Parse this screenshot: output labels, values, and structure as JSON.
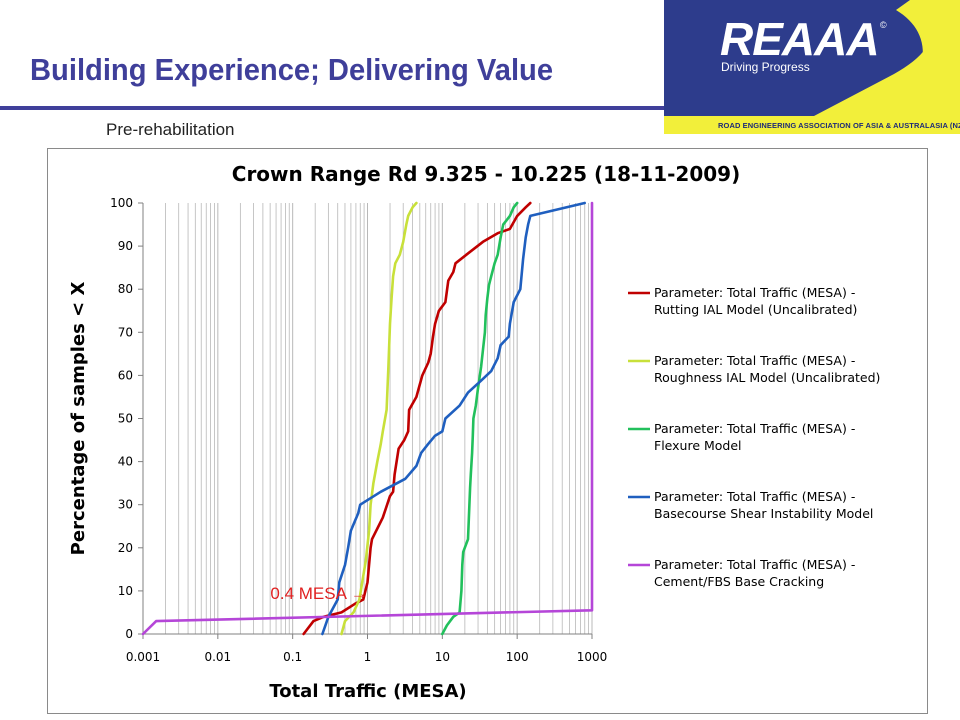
{
  "header": {
    "title": "Building Experience; Delivering Value",
    "subtitle": "Pre-rehabilitation"
  },
  "logo": {
    "wordmark": "REAAA",
    "registered": "©",
    "tagline": "Driving Progress",
    "association": "ROAD ENGINEERING ASSOCIATION OF ASIA & AUSTRALASIA (NZ)",
    "colors": {
      "navy": "#2d3c8c",
      "yellow": "#f2ef3a"
    }
  },
  "chart_data": {
    "type": "line",
    "title": "Crown Range Rd 9.325 - 10.225 (18-11-2009)",
    "xlabel": "Total Traffic (MESA)",
    "ylabel": "Percentage of samples < X",
    "x_scale": "log",
    "xlim": [
      0.001,
      1000
    ],
    "ylim": [
      0,
      100
    ],
    "x_ticks": [
      "0.001",
      "0.01",
      "0.1",
      "1",
      "10",
      "100",
      "1000"
    ],
    "y_ticks": [
      "0",
      "10",
      "20",
      "30",
      "40",
      "50",
      "60",
      "70",
      "80",
      "90",
      "100"
    ],
    "grid": {
      "x_major": true,
      "x_minor": true,
      "y": false
    },
    "legend": "right",
    "annotation": {
      "text": "0.4 MESA ",
      "arrow": "→",
      "color": "#e02020",
      "x": 0.4,
      "y": 9.5
    },
    "series": [
      {
        "name": "Parameter: Total Traffic (MESA) - Rutting IAL Model (Uncalibrated)",
        "color": "#c00000",
        "points": [
          [
            0.14,
            0
          ],
          [
            0.19,
            3
          ],
          [
            0.26,
            4
          ],
          [
            0.45,
            5
          ],
          [
            0.68,
            7
          ],
          [
            0.88,
            8
          ],
          [
            1.0,
            12
          ],
          [
            1.1,
            20
          ],
          [
            1.15,
            22
          ],
          [
            1.6,
            27
          ],
          [
            2.0,
            32
          ],
          [
            2.2,
            33
          ],
          [
            2.3,
            37
          ],
          [
            2.6,
            43
          ],
          [
            3.1,
            45
          ],
          [
            3.5,
            47
          ],
          [
            3.6,
            52
          ],
          [
            4.5,
            55
          ],
          [
            5.4,
            60
          ],
          [
            6.5,
            63
          ],
          [
            7.0,
            65
          ],
          [
            7.5,
            69
          ],
          [
            8.0,
            72
          ],
          [
            9.0,
            75
          ],
          [
            11,
            77
          ],
          [
            12,
            82
          ],
          [
            14,
            84
          ],
          [
            15,
            86
          ],
          [
            21,
            88
          ],
          [
            35,
            91
          ],
          [
            55,
            93
          ],
          [
            80,
            94
          ],
          [
            100,
            97
          ],
          [
            130,
            99
          ],
          [
            150,
            100
          ]
        ]
      },
      {
        "name": "Parameter: Total Traffic (MESA) - Roughness IAL Model (Uncalibrated)",
        "color": "#c8e03a",
        "points": [
          [
            0.45,
            0
          ],
          [
            0.5,
            3
          ],
          [
            0.65,
            5
          ],
          [
            0.78,
            8
          ],
          [
            0.85,
            12
          ],
          [
            0.95,
            17
          ],
          [
            1.05,
            24
          ],
          [
            1.1,
            30
          ],
          [
            1.2,
            35
          ],
          [
            1.35,
            40
          ],
          [
            1.5,
            44
          ],
          [
            1.6,
            47
          ],
          [
            1.8,
            52
          ],
          [
            1.85,
            57
          ],
          [
            1.9,
            62
          ],
          [
            1.95,
            67
          ],
          [
            2.0,
            72
          ],
          [
            2.1,
            78
          ],
          [
            2.2,
            83
          ],
          [
            2.35,
            86
          ],
          [
            2.7,
            88
          ],
          [
            3.0,
            91
          ],
          [
            3.3,
            95
          ],
          [
            3.5,
            97
          ],
          [
            4.0,
            99
          ],
          [
            4.5,
            100
          ]
        ]
      },
      {
        "name": "Parameter: Total Traffic (MESA) - Flexure Model",
        "color": "#22c05c",
        "points": [
          [
            10,
            0
          ],
          [
            11.5,
            2
          ],
          [
            14,
            4
          ],
          [
            17,
            5
          ],
          [
            18,
            10
          ],
          [
            18.5,
            16
          ],
          [
            19,
            19
          ],
          [
            22,
            22
          ],
          [
            22.5,
            26
          ],
          [
            23,
            30
          ],
          [
            23.5,
            34
          ],
          [
            24,
            37
          ],
          [
            25,
            42
          ],
          [
            25.5,
            46
          ],
          [
            26,
            50
          ],
          [
            28,
            53
          ],
          [
            30,
            57
          ],
          [
            33,
            62
          ],
          [
            35,
            66
          ],
          [
            37,
            70
          ],
          [
            38,
            74
          ],
          [
            40,
            78
          ],
          [
            42,
            81
          ],
          [
            45,
            83
          ],
          [
            50,
            86
          ],
          [
            55,
            88
          ],
          [
            60,
            92
          ],
          [
            65,
            95
          ],
          [
            80,
            97
          ],
          [
            90,
            99
          ],
          [
            100,
            100
          ]
        ]
      },
      {
        "name": "Parameter: Total Traffic (MESA) - Basecourse Shear Instability Model",
        "color": "#1f5fbf",
        "points": [
          [
            0.25,
            0
          ],
          [
            0.3,
            4
          ],
          [
            0.4,
            8
          ],
          [
            0.42,
            12
          ],
          [
            0.5,
            16
          ],
          [
            0.55,
            20
          ],
          [
            0.6,
            24
          ],
          [
            0.75,
            28
          ],
          [
            0.8,
            30
          ],
          [
            1.5,
            33
          ],
          [
            3.2,
            36
          ],
          [
            4.5,
            39
          ],
          [
            5.2,
            42
          ],
          [
            6.4,
            44
          ],
          [
            8.0,
            46
          ],
          [
            10,
            47
          ],
          [
            11,
            50
          ],
          [
            17,
            53
          ],
          [
            22,
            56
          ],
          [
            34,
            59
          ],
          [
            45,
            61
          ],
          [
            55,
            64
          ],
          [
            60,
            67
          ],
          [
            77,
            69
          ],
          [
            80,
            72
          ],
          [
            90,
            77
          ],
          [
            110,
            80
          ],
          [
            120,
            87
          ],
          [
            130,
            92
          ],
          [
            140,
            95
          ],
          [
            150,
            97
          ],
          [
            800,
            100
          ]
        ]
      },
      {
        "name": "Parameter: Total Traffic (MESA) - Cement/FBS Base Cracking",
        "color": "#b546d8",
        "points": [
          [
            0.001,
            0
          ],
          [
            0.0015,
            3
          ],
          [
            1000,
            5.5
          ],
          [
            1000,
            100
          ]
        ]
      }
    ]
  }
}
